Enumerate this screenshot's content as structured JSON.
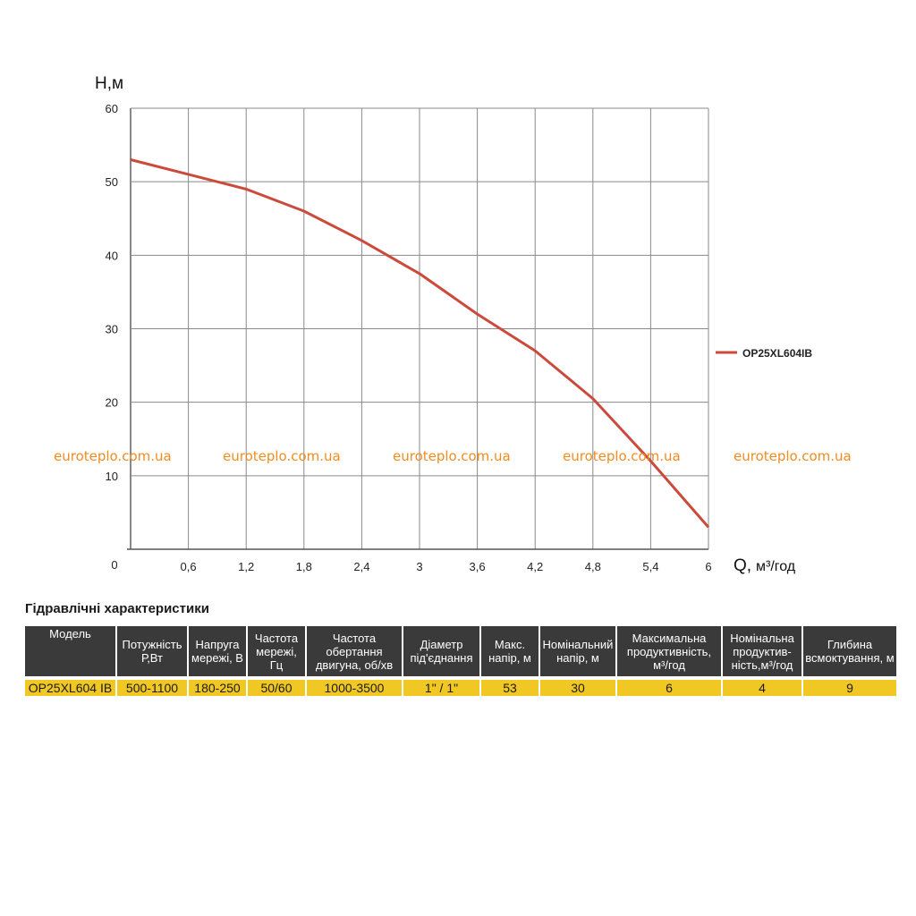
{
  "chart_data": {
    "type": "line",
    "x": [
      0,
      0.6,
      1.2,
      1.8,
      2.4,
      3,
      3.6,
      4.2,
      4.8,
      5.4,
      6
    ],
    "series": [
      {
        "name": "OP25XL604IB",
        "values": [
          53,
          51,
          49,
          46,
          42,
          37.5,
          32,
          27,
          20.5,
          12,
          3
        ]
      }
    ],
    "x_ticks": [
      "0,6",
      "1,2",
      "1,8",
      "2,4",
      "3",
      "3,6",
      "4,2",
      "4,8",
      "5,4",
      "6"
    ],
    "y_ticks": [
      "10",
      "20",
      "30",
      "40",
      "50",
      "60"
    ],
    "origin_label": "0",
    "ylabel": "H,м",
    "xlabel": "Q,",
    "xlabel_unit": "м³/год",
    "xlim": [
      0,
      6
    ],
    "ylim": [
      0,
      60
    ],
    "grid": true,
    "legend_position": "right",
    "line_color": "#cc4a3b"
  },
  "watermark": "euroteplo.com.ua",
  "table": {
    "title": "Гідравлічні характеристики",
    "headers": [
      "Модель",
      "Потужність Р,Вт",
      "Напруга мережі, В",
      "Частота мережі, Гц",
      "Частота обертання двигуна, об/хв",
      "Діаметр під'єднання",
      "Макс. напір, м",
      "Номінальний напір, м",
      "Максимальна продуктивність, м³/год",
      "Номінальна продуктив-ність,м³/год",
      "Глибина всмоктування, м"
    ],
    "row": [
      "OP25XL604 IB",
      "500-1100",
      "180-250",
      "50/60",
      "1000-3500",
      "1\" / 1\"",
      "53",
      "30",
      "6",
      "4",
      "9"
    ]
  },
  "colors": {
    "header_bg": "#3a3a3a",
    "cell_bg": "#f1c823",
    "watermark": "#f28c1e"
  }
}
